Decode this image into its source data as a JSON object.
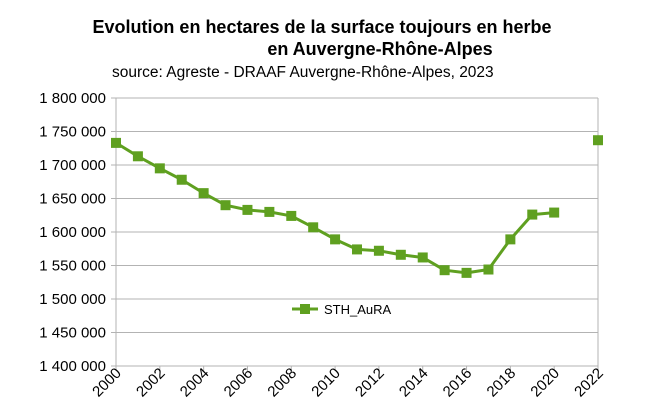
{
  "title_line1": "Evolution en hectares de la surface toujours en herbe",
  "title_line2": "en Auvergne-Rhône-Alpes",
  "source": "source: Agreste - DRAAF Auvergne-Rhône-Alpes, 2023",
  "colors": {
    "series": "#5fa020",
    "grid": "#b3b3b3",
    "axis": "#b3b3b3"
  },
  "chart_data": {
    "type": "line",
    "title": "Evolution en hectares de la surface toujours en herbe en Auvergne-Rhône-Alpes",
    "subtitle": "source: Agreste - DRAAF Auvergne-Rhône-Alpes, 2023",
    "xlabel": "",
    "ylabel": "",
    "xlim": [
      2000,
      2022
    ],
    "ylim": [
      1400000,
      1800000
    ],
    "y_ticks": [
      1400000,
      1450000,
      1500000,
      1550000,
      1600000,
      1650000,
      1700000,
      1750000,
      1800000
    ],
    "y_tick_labels": [
      "1 400 000",
      "1 450 000",
      "1 500 000",
      "1 550 000",
      "1 600 000",
      "1 650 000",
      "1 700 000",
      "1 750 000",
      "1 800 000"
    ],
    "x_ticks": [
      2000,
      2002,
      2004,
      2006,
      2008,
      2010,
      2012,
      2014,
      2016,
      2018,
      2020,
      2022
    ],
    "x_tick_labels": [
      "2000",
      "2002",
      "2004",
      "2006",
      "2008",
      "2010",
      "2012",
      "2014",
      "2016",
      "2018",
      "2020",
      "2022"
    ],
    "grid": "horizontal",
    "legend_position": "center",
    "series": [
      {
        "name": "STH_AuRA",
        "x": [
          2000,
          2001,
          2002,
          2003,
          2004,
          2005,
          2006,
          2007,
          2008,
          2009,
          2010,
          2011,
          2012,
          2013,
          2014,
          2015,
          2016,
          2017,
          2018,
          2019,
          2020,
          2022
        ],
        "values": [
          1733000,
          1713000,
          1695000,
          1678000,
          1658000,
          1640000,
          1633000,
          1630000,
          1624000,
          1607000,
          1589000,
          1574000,
          1572000,
          1566000,
          1562000,
          1543000,
          1539000,
          1544000,
          1589000,
          1626000,
          1629000,
          1737000
        ],
        "connected_until": 2020
      }
    ]
  }
}
